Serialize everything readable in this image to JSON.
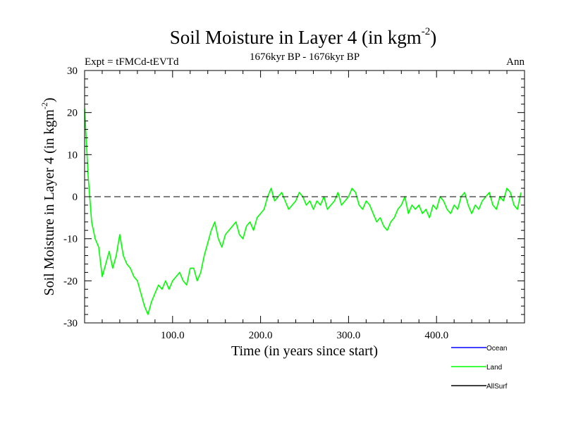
{
  "chart_data": {
    "type": "line",
    "title": "Soil Moisture in Layer 4 (in kgm",
    "title_superscript": "-2",
    "title_close": ")",
    "subtitle_left": "Expt = tFMCd-tEVTd",
    "subtitle_center": "1676kyr BP - 1676kyr BP",
    "subtitle_right": "Ann",
    "xlabel": "Time (in years since start)",
    "ylabel": "Soil Moisture in Layer 4 (in kgm",
    "ylabel_superscript": "-2",
    "ylabel_close": ")",
    "xlim": [
      0,
      500
    ],
    "ylim": [
      -30,
      30
    ],
    "x_tick_labels": [
      "100.0",
      "200.0",
      "300.0",
      "400.0"
    ],
    "x_tick_values": [
      100,
      200,
      300,
      400
    ],
    "y_tick_labels": [
      "-30",
      "-20",
      "-10",
      "0",
      "10",
      "20",
      "30"
    ],
    "y_tick_values": [
      -30,
      -20,
      -10,
      0,
      10,
      20,
      30
    ],
    "reference_line": {
      "y": 0,
      "style": "dashed"
    },
    "legend": [
      {
        "name": "Ocean",
        "color": "#0000ff"
      },
      {
        "name": "Land",
        "color": "#00ff00"
      },
      {
        "name": "AllSurf",
        "color": "#000000"
      }
    ],
    "series": [
      {
        "name": "Land",
        "color": "#00ff00",
        "x_start": 0,
        "x_step": 4,
        "values": [
          21,
          5,
          -6,
          -10,
          -12,
          -19,
          -16,
          -13,
          -17,
          -14,
          -9,
          -14,
          -16,
          -17,
          -19,
          -20,
          -23,
          -26,
          -28,
          -25,
          -23,
          -21,
          -22,
          -20,
          -22,
          -20,
          -19,
          -18,
          -20,
          -21,
          -17,
          -17,
          -20,
          -18,
          -14,
          -11,
          -8,
          -6,
          -10,
          -12,
          -9,
          -8,
          -7,
          -6,
          -9,
          -10,
          -7,
          -6,
          -8,
          -5,
          -4,
          -3,
          0,
          2,
          -1,
          0,
          1,
          -1,
          -3,
          -2,
          -1,
          1,
          0,
          -2,
          -1,
          -3,
          -1,
          -2,
          0,
          -3,
          -2,
          -1,
          1,
          -2,
          -1,
          0,
          2,
          1,
          -2,
          -3,
          -1,
          -2,
          -4,
          -6,
          -5,
          -7,
          -8,
          -6,
          -5,
          -3,
          -2,
          0,
          -4,
          -2,
          -3,
          -2,
          -4,
          -3,
          -5,
          -2,
          -3,
          0,
          -1,
          -3,
          -4,
          -2,
          -3,
          0,
          1,
          -2,
          -4,
          -2,
          -3,
          -1,
          0,
          1,
          -2,
          -3,
          0,
          -1,
          2,
          1,
          -2,
          -3,
          1
        ]
      }
    ]
  }
}
